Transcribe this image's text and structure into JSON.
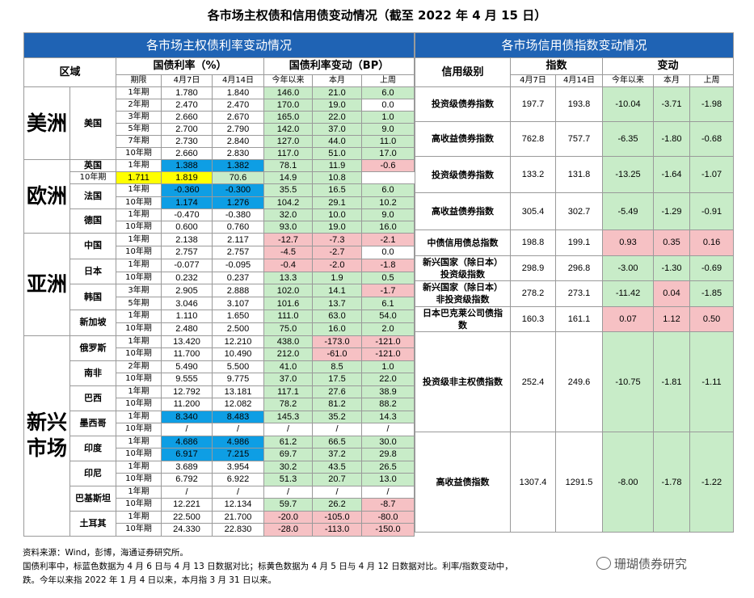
{
  "title": "各市场主权债和信用债变动情况（截至 2022 年 4 月 15 日）",
  "left_table": {
    "header": "各市场主权债利率变动情况",
    "col_region": "区域",
    "col_rate": "国债利率（%）",
    "col_change": "国债利率变动（BP）",
    "sub_term": "期限",
    "sub_d1": "4月7日",
    "sub_d2": "4月14日",
    "sub_ytd": "今年以来",
    "sub_month": "本月",
    "sub_week": "上周",
    "regions": [
      "美洲",
      "欧洲",
      "亚洲",
      "新兴\n市场"
    ],
    "countries": [
      "美国",
      "英国",
      "法国",
      "德国",
      "中国",
      "日本",
      "韩国",
      "新加坡",
      "俄罗斯",
      "南非",
      "巴西",
      "墨西哥",
      "印度",
      "印尼",
      "巴基斯坦",
      "土耳其"
    ],
    "rows": [
      {
        "term": "1年期",
        "d1": "1.780",
        "d2": "1.840",
        "ytd": "146.0",
        "m": "21.0",
        "w": "6.0",
        "c": [
          "",
          "",
          "g",
          "g",
          "g"
        ]
      },
      {
        "term": "2年期",
        "d1": "2.470",
        "d2": "2.470",
        "ytd": "170.0",
        "m": "19.0",
        "w": "0.0",
        "c": [
          "",
          "",
          "g",
          "g",
          ""
        ]
      },
      {
        "term": "3年期",
        "d1": "2.660",
        "d2": "2.670",
        "ytd": "165.0",
        "m": "22.0",
        "w": "1.0",
        "c": [
          "",
          "",
          "g",
          "g",
          "g"
        ]
      },
      {
        "term": "5年期",
        "d1": "2.700",
        "d2": "2.790",
        "ytd": "142.0",
        "m": "37.0",
        "w": "9.0",
        "c": [
          "",
          "",
          "g",
          "g",
          "g"
        ]
      },
      {
        "term": "7年期",
        "d1": "2.730",
        "d2": "2.840",
        "ytd": "127.0",
        "m": "44.0",
        "w": "11.0",
        "c": [
          "",
          "",
          "g",
          "g",
          "g"
        ]
      },
      {
        "term": "10年期",
        "d1": "2.660",
        "d2": "2.830",
        "ytd": "117.0",
        "m": "51.0",
        "w": "17.0",
        "c": [
          "",
          "",
          "g",
          "g",
          "g"
        ]
      },
      {
        "term": "1年期",
        "d1": "1.388",
        "d2": "1.382",
        "ytd": "78.1",
        "m": "11.9",
        "w": "-0.6",
        "c": [
          "b",
          "b",
          "g",
          "g",
          "r"
        ]
      },
      {
        "term": "10年期",
        "d1": "1.711",
        "d2": "1.819",
        "ytd": "70.6",
        "m": "14.9",
        "w": "10.8",
        "c": [
          "y",
          "y",
          "g",
          "g",
          "g"
        ]
      },
      {
        "term": "1年期",
        "d1": "-0.360",
        "d2": "-0.300",
        "ytd": "35.5",
        "m": "16.5",
        "w": "6.0",
        "c": [
          "b",
          "b",
          "g",
          "g",
          "g"
        ]
      },
      {
        "term": "10年期",
        "d1": "1.174",
        "d2": "1.276",
        "ytd": "104.2",
        "m": "29.1",
        "w": "10.2",
        "c": [
          "b",
          "b",
          "g",
          "g",
          "g"
        ]
      },
      {
        "term": "1年期",
        "d1": "-0.470",
        "d2": "-0.380",
        "ytd": "32.0",
        "m": "10.0",
        "w": "9.0",
        "c": [
          "",
          "",
          "g",
          "g",
          "g"
        ]
      },
      {
        "term": "10年期",
        "d1": "0.600",
        "d2": "0.760",
        "ytd": "93.0",
        "m": "19.0",
        "w": "16.0",
        "c": [
          "",
          "",
          "g",
          "g",
          "g"
        ]
      },
      {
        "term": "1年期",
        "d1": "2.138",
        "d2": "2.117",
        "ytd": "-12.7",
        "m": "-7.3",
        "w": "-2.1",
        "c": [
          "",
          "",
          "r",
          "r",
          "r"
        ]
      },
      {
        "term": "10年期",
        "d1": "2.757",
        "d2": "2.757",
        "ytd": "-4.5",
        "m": "-2.7",
        "w": "0.0",
        "c": [
          "",
          "",
          "r",
          "r",
          ""
        ]
      },
      {
        "term": "1年期",
        "d1": "-0.077",
        "d2": "-0.095",
        "ytd": "-0.4",
        "m": "-2.0",
        "w": "-1.8",
        "c": [
          "",
          "",
          "r",
          "r",
          "r"
        ]
      },
      {
        "term": "10年期",
        "d1": "0.232",
        "d2": "0.237",
        "ytd": "13.3",
        "m": "1.9",
        "w": "0.5",
        "c": [
          "",
          "",
          "g",
          "g",
          "g"
        ]
      },
      {
        "term": "3年期",
        "d1": "2.905",
        "d2": "2.888",
        "ytd": "102.0",
        "m": "14.1",
        "w": "-1.7",
        "c": [
          "",
          "",
          "g",
          "g",
          "r"
        ]
      },
      {
        "term": "5年期",
        "d1": "3.046",
        "d2": "3.107",
        "ytd": "101.6",
        "m": "13.7",
        "w": "6.1",
        "c": [
          "",
          "",
          "g",
          "g",
          "g"
        ]
      },
      {
        "term": "1年期",
        "d1": "1.110",
        "d2": "1.650",
        "ytd": "111.0",
        "m": "63.0",
        "w": "54.0",
        "c": [
          "",
          "",
          "g",
          "g",
          "g"
        ]
      },
      {
        "term": "10年期",
        "d1": "2.480",
        "d2": "2.500",
        "ytd": "75.0",
        "m": "16.0",
        "w": "2.0",
        "c": [
          "",
          "",
          "g",
          "g",
          "g"
        ]
      },
      {
        "term": "1年期",
        "d1": "13.420",
        "d2": "12.210",
        "ytd": "438.0",
        "m": "-173.0",
        "w": "-121.0",
        "c": [
          "",
          "",
          "g",
          "r",
          "r"
        ]
      },
      {
        "term": "10年期",
        "d1": "11.700",
        "d2": "10.490",
        "ytd": "212.0",
        "m": "-61.0",
        "w": "-121.0",
        "c": [
          "",
          "",
          "g",
          "r",
          "r"
        ]
      },
      {
        "term": "2年期",
        "d1": "5.490",
        "d2": "5.500",
        "ytd": "41.0",
        "m": "8.5",
        "w": "1.0",
        "c": [
          "",
          "",
          "g",
          "g",
          "g"
        ]
      },
      {
        "term": "10年期",
        "d1": "9.555",
        "d2": "9.775",
        "ytd": "37.0",
        "m": "17.5",
        "w": "22.0",
        "c": [
          "",
          "",
          "g",
          "g",
          "g"
        ]
      },
      {
        "term": "1年期",
        "d1": "12.792",
        "d2": "13.181",
        "ytd": "117.1",
        "m": "27.6",
        "w": "38.9",
        "c": [
          "",
          "",
          "g",
          "g",
          "g"
        ]
      },
      {
        "term": "10年期",
        "d1": "11.200",
        "d2": "12.082",
        "ytd": "78.2",
        "m": "81.2",
        "w": "88.2",
        "c": [
          "",
          "",
          "g",
          "g",
          "g"
        ]
      },
      {
        "term": "1年期",
        "d1": "8.340",
        "d2": "8.483",
        "ytd": "145.3",
        "m": "35.2",
        "w": "14.3",
        "c": [
          "b",
          "b",
          "g",
          "g",
          "g"
        ]
      },
      {
        "term": "10年期",
        "d1": "/",
        "d2": "/",
        "ytd": "/",
        "m": "/",
        "w": "/",
        "c": [
          "",
          "",
          "",
          "",
          ""
        ]
      },
      {
        "term": "1年期",
        "d1": "4.686",
        "d2": "4.986",
        "ytd": "61.2",
        "m": "66.5",
        "w": "30.0",
        "c": [
          "b",
          "b",
          "g",
          "g",
          "g"
        ]
      },
      {
        "term": "10年期",
        "d1": "6.917",
        "d2": "7.215",
        "ytd": "69.7",
        "m": "37.2",
        "w": "29.8",
        "c": [
          "b",
          "b",
          "g",
          "g",
          "g"
        ]
      },
      {
        "term": "1年期",
        "d1": "3.689",
        "d2": "3.954",
        "ytd": "30.2",
        "m": "43.5",
        "w": "26.5",
        "c": [
          "",
          "",
          "g",
          "g",
          "g"
        ]
      },
      {
        "term": "10年期",
        "d1": "6.792",
        "d2": "6.922",
        "ytd": "51.3",
        "m": "20.7",
        "w": "13.0",
        "c": [
          "",
          "",
          "g",
          "g",
          "g"
        ]
      },
      {
        "term": "1年期",
        "d1": "/",
        "d2": "/",
        "ytd": "/",
        "m": "/",
        "w": "/",
        "c": [
          "",
          "",
          "",
          "",
          ""
        ]
      },
      {
        "term": "10年期",
        "d1": "12.221",
        "d2": "12.134",
        "ytd": "59.7",
        "m": "26.2",
        "w": "-8.7",
        "c": [
          "",
          "",
          "g",
          "g",
          "r"
        ]
      },
      {
        "term": "1年期",
        "d1": "22.500",
        "d2": "21.700",
        "ytd": "-20.0",
        "m": "-105.0",
        "w": "-80.0",
        "c": [
          "",
          "",
          "r",
          "r",
          "r"
        ]
      },
      {
        "term": "10年期",
        "d1": "24.330",
        "d2": "22.830",
        "ytd": "-28.0",
        "m": "-113.0",
        "w": "-150.0",
        "c": [
          "",
          "",
          "r",
          "r",
          "r"
        ]
      }
    ]
  },
  "right_table": {
    "header": "各市场信用债指数变动情况",
    "col_level": "信用级别",
    "col_index": "指数",
    "col_change": "变动",
    "sub_d1": "4月7日",
    "sub_d2": "4月14日",
    "sub_ytd": "今年以来",
    "sub_month": "本月",
    "sub_week": "上周",
    "rows": [
      {
        "name": "投资级债券指数",
        "d1": "197.7",
        "d2": "193.8",
        "ytd": "-10.04",
        "m": "-3.71",
        "w": "-1.98",
        "c": [
          "g",
          "g",
          "g"
        ]
      },
      {
        "name": "高收益债券指数",
        "d1": "762.8",
        "d2": "757.7",
        "ytd": "-6.35",
        "m": "-1.80",
        "w": "-0.68",
        "c": [
          "g",
          "g",
          "g"
        ]
      },
      {
        "name": "投资级债券指数",
        "d1": "133.2",
        "d2": "131.8",
        "ytd": "-13.25",
        "m": "-1.64",
        "w": "-1.07",
        "c": [
          "g",
          "g",
          "g"
        ]
      },
      {
        "name": "高收益债券指数",
        "d1": "305.4",
        "d2": "302.7",
        "ytd": "-5.49",
        "m": "-1.29",
        "w": "-0.91",
        "c": [
          "g",
          "g",
          "g"
        ]
      },
      {
        "name": "中债信用债总指数",
        "d1": "198.8",
        "d2": "199.1",
        "ytd": "0.93",
        "m": "0.35",
        "w": "0.16",
        "c": [
          "r",
          "r",
          "r"
        ]
      },
      {
        "name": "新兴国家（除日本）投资级指数",
        "d1": "298.9",
        "d2": "296.8",
        "ytd": "-3.00",
        "m": "-1.30",
        "w": "-0.69",
        "c": [
          "g",
          "g",
          "g"
        ]
      },
      {
        "name": "新兴国家（除日本）非投资级指数",
        "d1": "278.2",
        "d2": "273.1",
        "ytd": "-11.42",
        "m": "0.04",
        "w": "-1.85",
        "c": [
          "g",
          "r",
          "g"
        ]
      },
      {
        "name": "日本巴克莱公司债指数",
        "d1": "160.3",
        "d2": "161.1",
        "ytd": "0.07",
        "m": "1.12",
        "w": "0.50",
        "c": [
          "r",
          "r",
          "r"
        ]
      },
      {
        "name": "投资级非主权债指数",
        "d1": "252.4",
        "d2": "249.6",
        "ytd": "-10.75",
        "m": "-1.81",
        "w": "-1.11",
        "c": [
          "g",
          "g",
          "g"
        ]
      },
      {
        "name": "高收益债指数",
        "d1": "1307.4",
        "d2": "1291.5",
        "ytd": "-8.00",
        "m": "-1.78",
        "w": "-1.22",
        "c": [
          "g",
          "g",
          "g"
        ]
      }
    ]
  },
  "notes": {
    "line1": "资料来源：Wind，彭博，海通证券研究所。",
    "line2": "国债利率中，标蓝色数据为 4 月 6 日与 4 月 13 日数据对比；标黄色数据为 4 月 5 日与 4 月 12 日数据对比。利率/指数变动中，",
    "line3": "跌。今年以来指 2022 年 1 月 4 日以来，本月指 3 月 31 日以来。"
  },
  "watermark": "珊瑚债券研究"
}
